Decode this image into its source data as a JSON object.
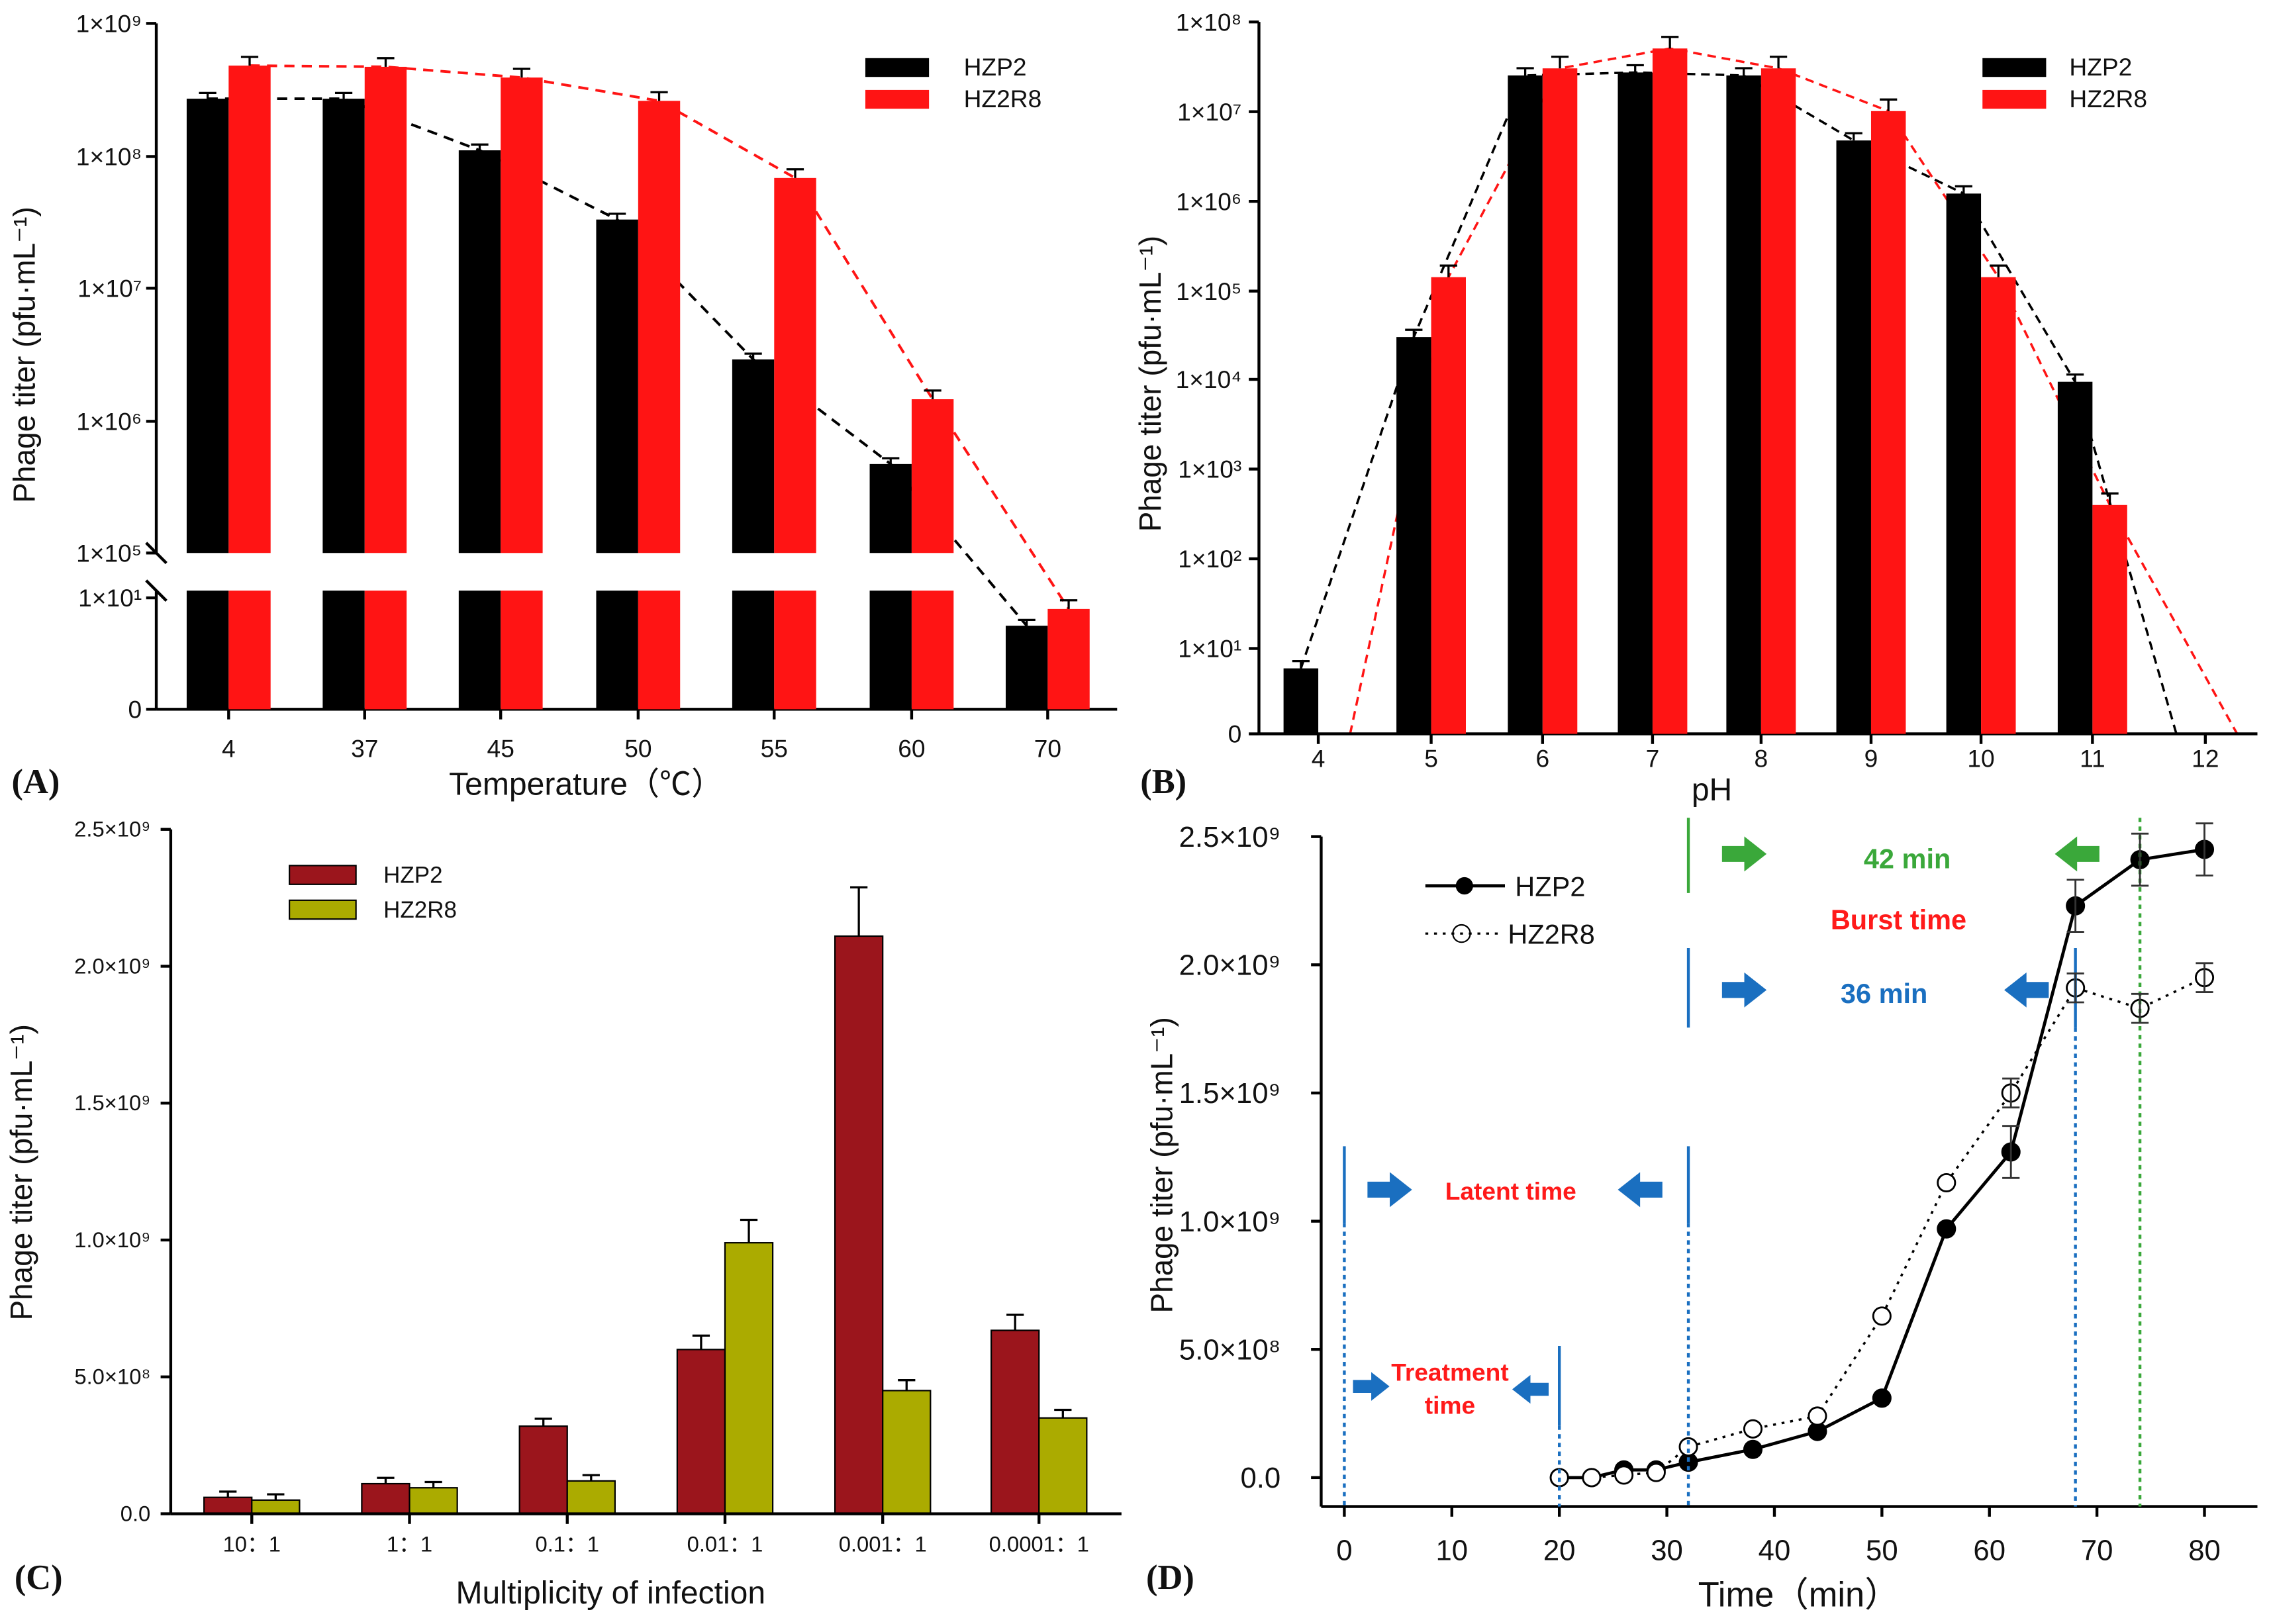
{
  "colors": {
    "black": "#000000",
    "red": "#ff1414",
    "darkred": "#9b151c",
    "olive": "#abab00",
    "blue": "#1a6fc0",
    "green": "#3aa83a",
    "annot_red": "#ff1a1a"
  },
  "chart_data": [
    {
      "panel": "(A)",
      "type": "bar",
      "scale": "log-broken",
      "xlabel": "Temperature（℃）",
      "ylabel": "Phage titer (pfu·mL⁻¹)",
      "categories": [
        "4",
        "37",
        "45",
        "50",
        "55",
        "60",
        "70"
      ],
      "yticks": [
        "1×10⁹",
        "1×10⁸",
        "1×10⁷",
        "1×10⁶",
        "1×10⁵",
        "1×10¹",
        "0"
      ],
      "series": [
        {
          "name": "HZP2",
          "color": "#000000",
          "values": [
            270000000,
            270000000,
            110000000,
            33000000,
            2900000,
            470000,
            7.5
          ]
        },
        {
          "name": "HZ2R8",
          "color": "#ff1414",
          "values": [
            480000000,
            470000000,
            390000000,
            260000000,
            68000000,
            1450000,
            9
          ]
        }
      ],
      "legend": "top-right",
      "trend_lines": "dashed"
    },
    {
      "panel": "(B)",
      "type": "bar",
      "scale": "log",
      "xlabel": "pH",
      "ylabel": "Phage titer (pfu·mL⁻¹)",
      "categories": [
        "4",
        "5",
        "6",
        "7",
        "8",
        "9",
        "10",
        "11",
        "12"
      ],
      "yticks": [
        "1×10⁸",
        "1×10⁷",
        "1×10⁶",
        "1×10⁵",
        "1×10⁴",
        "1×10³",
        "1×10²",
        "1×10¹",
        "0"
      ],
      "series": [
        {
          "name": "HZP2",
          "color": "#000000",
          "values": [
            6,
            30000,
            25000000,
            27000000,
            25000000,
            4700000,
            1200000,
            9500,
            0
          ]
        },
        {
          "name": "HZ2R8",
          "color": "#ff1414",
          "values": [
            0,
            140000,
            30000000,
            50000000,
            30000000,
            10000000,
            140000,
            400,
            0
          ]
        }
      ],
      "legend": "top-right",
      "trend_lines": "dashed"
    },
    {
      "panel": "(C)",
      "type": "bar",
      "scale": "linear",
      "xlabel": "Multiplicity of infection",
      "ylabel": "Phage titer (pfu·mL⁻¹)",
      "ylim": [
        0,
        2500000000
      ],
      "categories": [
        "10：1",
        "1：1",
        "0.1：1",
        "0.01：1",
        "0.001：1",
        "0.0001：1"
      ],
      "yticks": [
        "0.0",
        "5.0×10⁸",
        "1.0×10⁹",
        "1.5×10⁹",
        "2.0×10⁹",
        "2.5×10⁹"
      ],
      "series": [
        {
          "name": "HZP2",
          "color": "#9b151c",
          "values": [
            60000000,
            110000000,
            320000000,
            600000000,
            2110000000,
            670000000
          ]
        },
        {
          "name": "HZ2R8",
          "color": "#abab00",
          "values": [
            50000000,
            95000000,
            120000000,
            990000000,
            450000000,
            350000000
          ]
        }
      ],
      "legend": "top-left"
    },
    {
      "panel": "(D)",
      "type": "line",
      "scale": "linear",
      "xlabel": "Time（min）",
      "ylabel": "Phage titer (pfu·mL⁻¹)",
      "xlim": [
        0,
        80
      ],
      "ylim": [
        0,
        2500000000
      ],
      "xticks": [
        "0",
        "10",
        "20",
        "30",
        "40",
        "50",
        "60",
        "70",
        "80"
      ],
      "yticks": [
        "0.0",
        "5.0×10⁸",
        "1.0×10⁹",
        "1.5×10⁹",
        "2.0×10⁹",
        "2.5×10⁹"
      ],
      "x": [
        20,
        23,
        26,
        29,
        32,
        38,
        44,
        50,
        56,
        62,
        68,
        74,
        80
      ],
      "series": [
        {
          "name": "HZP2",
          "style": "solid-filled",
          "values": [
            0,
            0,
            30000000,
            30000000,
            60000000,
            110000000,
            180000000,
            310000000,
            970000000,
            1270000000,
            2230000000,
            2410000000,
            2450000000
          ]
        },
        {
          "name": "HZ2R8",
          "style": "dotted-open",
          "values": [
            0,
            0,
            10000000,
            20000000,
            120000000,
            190000000,
            240000000,
            630000000,
            1150000000,
            1500000000,
            1910000000,
            1830000000,
            1950000000
          ]
        }
      ],
      "legend": "top-left",
      "annotations": {
        "burst_hzp2": "42 min",
        "burst_label": "Burst time",
        "burst_hz2r8": "36 min",
        "latent": "Latent time",
        "treatment_1": "Treatment",
        "treatment_2": "time"
      }
    }
  ]
}
